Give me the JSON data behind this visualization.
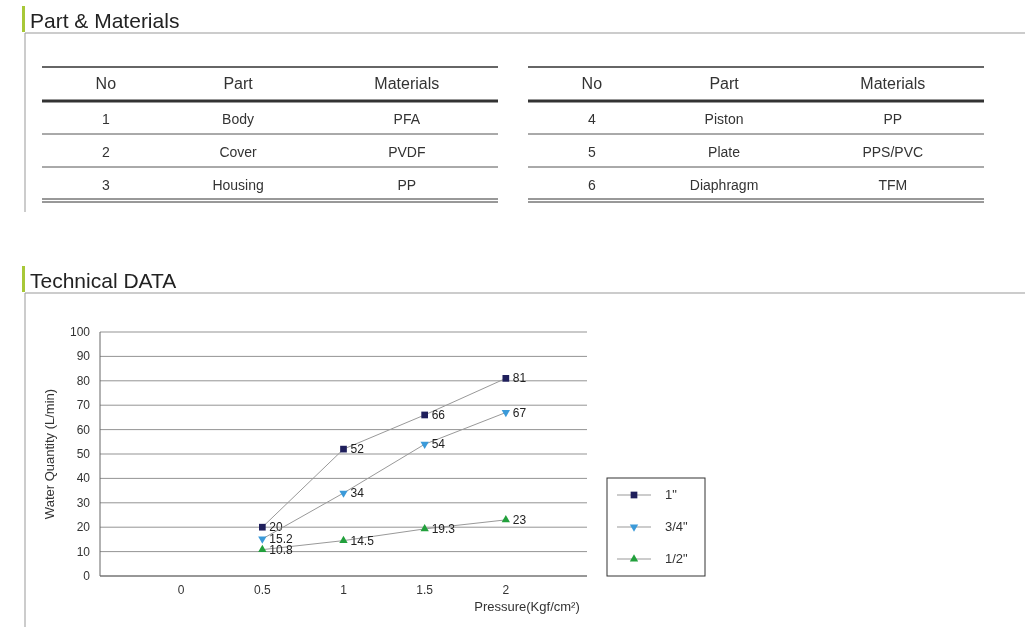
{
  "chart_data": [
    {
      "type": "other",
      "title": "Part & Materials",
      "annotations": [
        "No",
        "Part",
        "Materials",
        "1",
        "Body",
        "PFA",
        "2",
        "Cover",
        "PVDF",
        "3",
        "Housing",
        "PP",
        "No",
        "Part",
        "Materials",
        "4",
        "Piston",
        "PP",
        "5",
        "Plate",
        "PPS/PVC",
        "6",
        "Diaphragm",
        "TFM"
      ]
    },
    {
      "type": "line",
      "title": "Technical DATA",
      "xlabel": "Pressure(Kgf/cm²)",
      "ylabel": "Water Quantity (L/min)",
      "x": [
        0.5,
        1,
        1.5,
        2
      ],
      "xlim": [
        -0.5,
        2.5
      ],
      "xticks": [
        0,
        0.5,
        1,
        1.5,
        2
      ],
      "ylim": [
        0,
        100
      ],
      "yticks": [
        0,
        10,
        20,
        30,
        40,
        50,
        60,
        70,
        80,
        90,
        100
      ],
      "grid": "y",
      "legend": "right",
      "data_labels": true,
      "series": [
        {
          "name": "1\"",
          "color": "#1f1f5c",
          "marker": "square",
          "values": [
            20,
            52,
            66,
            81
          ]
        },
        {
          "name": "3/4\"",
          "color": "#3b9ad9",
          "marker": "triangle-down",
          "values": [
            15.2,
            34,
            54,
            67
          ]
        },
        {
          "name": "1/2\"",
          "color": "#22a03c",
          "marker": "triangle",
          "values": [
            10.8,
            14.5,
            19.3,
            23
          ]
        }
      ]
    }
  ]
}
